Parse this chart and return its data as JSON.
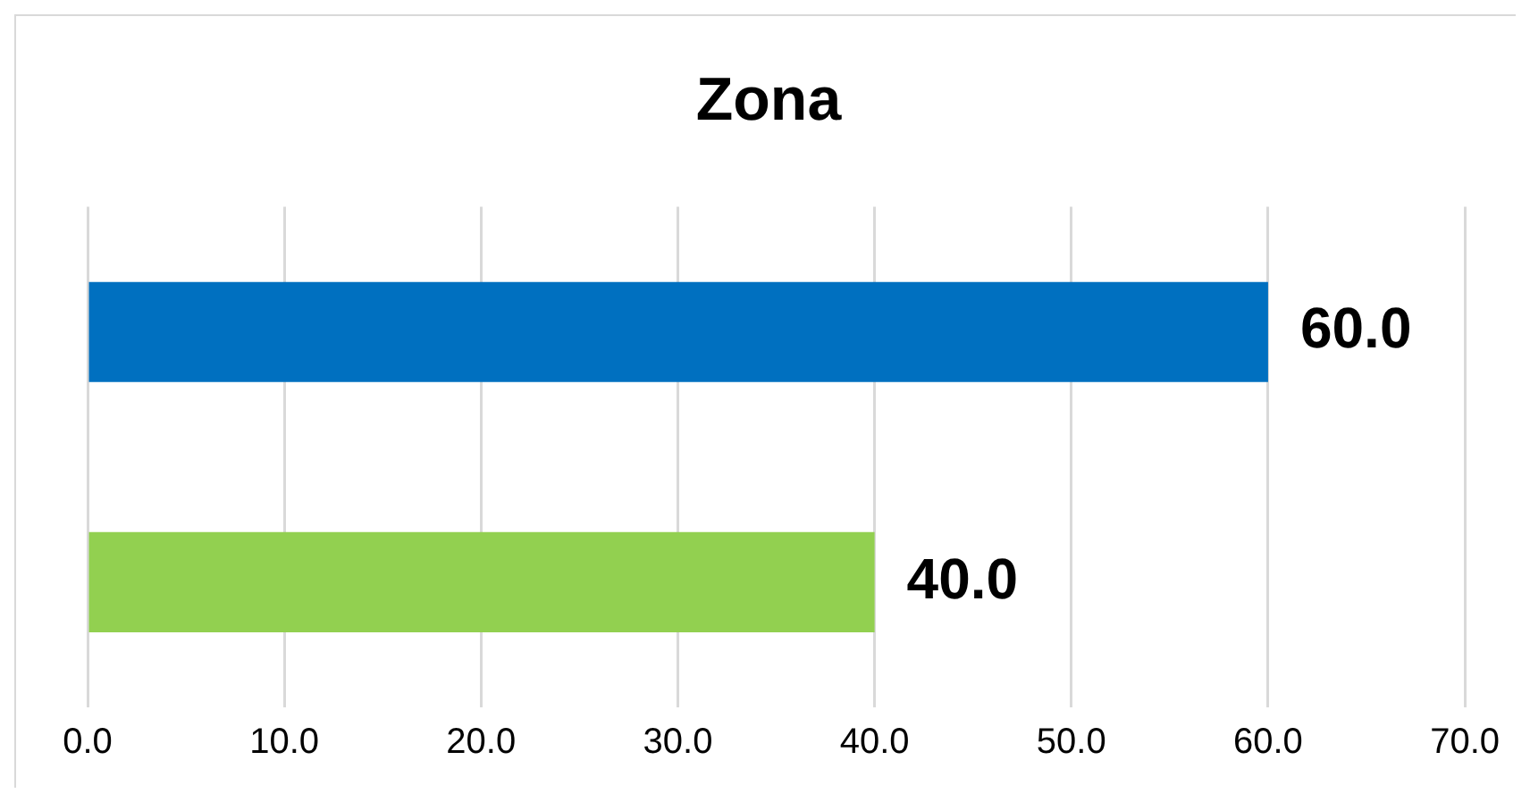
{
  "chart_data": {
    "type": "bar",
    "orientation": "horizontal",
    "title": "Zona",
    "categories": [
      null,
      null
    ],
    "values": [
      60,
      40
    ],
    "colors": [
      "#0070c0",
      "#92d050"
    ],
    "value_labels": [
      "60.0",
      "40.0"
    ],
    "xlim": [
      0,
      70
    ],
    "xticks": [
      {
        "value": 0,
        "label": "0.0"
      },
      {
        "value": 10,
        "label": "10.0"
      },
      {
        "value": 20,
        "label": "20.0"
      },
      {
        "value": 30,
        "label": "30.0"
      },
      {
        "value": 40,
        "label": "40.0"
      },
      {
        "value": 50,
        "label": "50.0"
      },
      {
        "value": 60,
        "label": "60.0"
      },
      {
        "value": 70,
        "label": "70.0"
      }
    ],
    "grid": "x",
    "legend": false
  }
}
